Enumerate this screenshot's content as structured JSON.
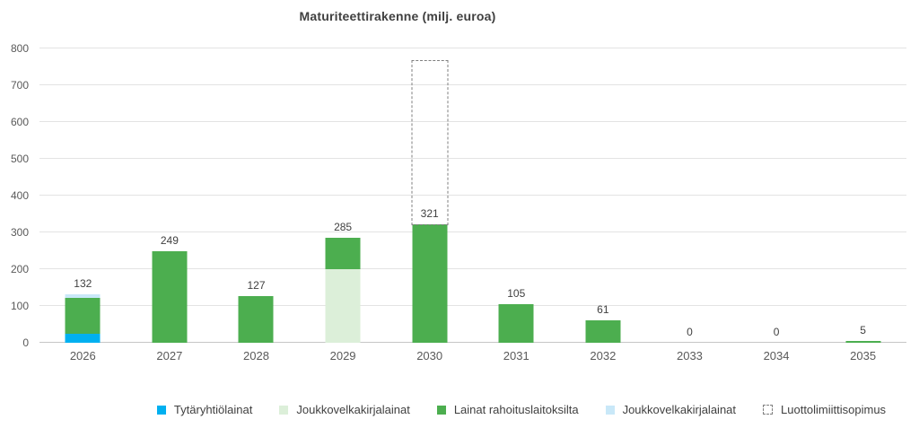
{
  "title": "Maturiteettirakenne (milj. euroa)",
  "colors": {
    "background": "#ffffff",
    "title_text": "#404040",
    "axis_text": "#595959",
    "value_label_text": "#404040",
    "gridline": "#e3e3e3",
    "axis_line": "#c6c6c6",
    "dashed_outline": "#7f7f7f"
  },
  "legend": [
    {
      "label": "Tytäryhtiölainat",
      "color": "#00b0f0",
      "style": "solid"
    },
    {
      "label": "Joukkovelkakirjalainat",
      "color": "#dcefd9",
      "style": "solid"
    },
    {
      "label": "Lainat rahoituslaitoksilta",
      "color": "#4cae4f",
      "style": "solid"
    },
    {
      "label": "Joukkovelkakirjalainat",
      "color": "#c9e8f8",
      "style": "solid"
    },
    {
      "label": "Luottolimiittisopimus",
      "color": "#ffffff",
      "style": "dashed"
    }
  ],
  "chart_data": {
    "type": "bar",
    "title": "Maturiteettirakenne (milj. euroa)",
    "stacked": true,
    "grid": "horizontal",
    "legend_position": "bottom",
    "categories": [
      "2026",
      "2027",
      "2028",
      "2029",
      "2030",
      "2031",
      "2032",
      "2033",
      "2034",
      "2035"
    ],
    "totals": [
      132,
      249,
      127,
      285,
      321,
      105,
      61,
      0,
      0,
      5
    ],
    "ylim": [
      0,
      800
    ],
    "yticks": [
      0,
      100,
      200,
      300,
      400,
      500,
      600,
      700,
      800
    ],
    "series": [
      {
        "name": "Tytäryhtiölainat",
        "color": "#00b0f0",
        "style": "solid",
        "values": [
          25,
          0,
          0,
          0,
          0,
          0,
          0,
          0,
          0,
          0
        ]
      },
      {
        "name": "Joukkovelkakirjalainat",
        "color": "#dcefd9",
        "style": "solid",
        "values": [
          0,
          0,
          0,
          200,
          0,
          0,
          0,
          0,
          0,
          0
        ]
      },
      {
        "name": "Lainat rahoituslaitoksilta",
        "color": "#4cae4f",
        "style": "solid",
        "values": [
          97,
          249,
          127,
          85,
          321,
          105,
          61,
          0,
          0,
          5
        ]
      },
      {
        "name": "Joukkovelkakirjalainat",
        "color": "#c9e8f8",
        "style": "solid",
        "values": [
          10,
          0,
          0,
          0,
          0,
          0,
          0,
          0,
          0,
          0
        ]
      },
      {
        "name": "Luottolimiittisopimus",
        "color": "#7f7f7f",
        "style": "dashed",
        "values": [
          0,
          0,
          0,
          0,
          450,
          0,
          0,
          0,
          0,
          0
        ]
      }
    ]
  }
}
